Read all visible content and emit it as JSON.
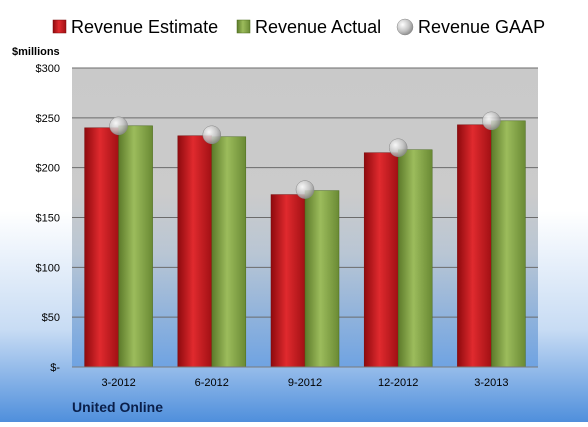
{
  "legend": {
    "estimate": "Revenue Estimate",
    "actual": "Revenue Actual",
    "gaap": "Revenue GAAP"
  },
  "unit_label": "$millions",
  "company": "United Online",
  "colors": {
    "estimate": "#c8151b",
    "actual": "#7f9f3f",
    "gaap": "#bfbfbf"
  },
  "chart_data": {
    "type": "bar",
    "categories": [
      "3-2012",
      "6-2012",
      "9-2012",
      "12-2012",
      "3-2013"
    ],
    "series": [
      {
        "name": "Revenue Estimate",
        "values": [
          240,
          232,
          173,
          215,
          243
        ]
      },
      {
        "name": "Revenue Actual",
        "values": [
          242,
          231,
          177,
          218,
          247
        ]
      },
      {
        "name": "Revenue GAAP",
        "values": [
          242,
          233,
          178,
          220,
          247
        ]
      }
    ],
    "yticks": [
      "$-",
      "$50",
      "$100",
      "$150",
      "$200",
      "$250",
      "$300"
    ],
    "ylim": [
      0,
      300
    ],
    "grid": true,
    "legend_position": "top"
  }
}
